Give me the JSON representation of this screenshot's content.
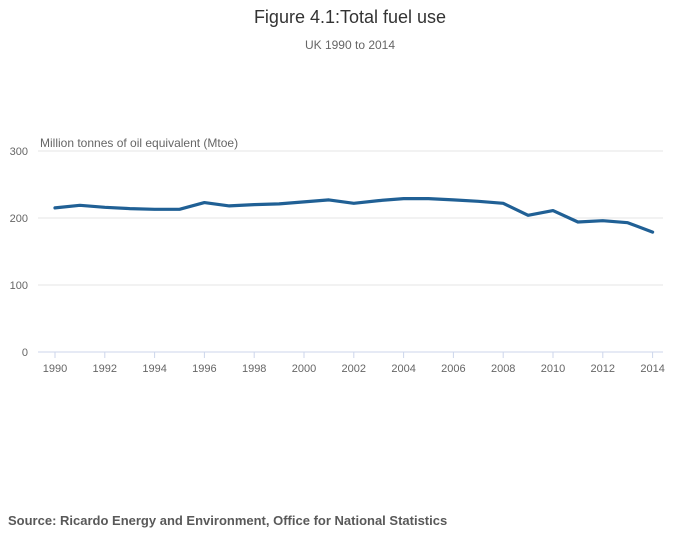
{
  "header": {
    "title": "Figure 4.1:Total fuel use",
    "subtitle": "UK 1990 to 2014"
  },
  "source": "Source: Ricardo Energy and Environment, Office for National Statistics",
  "chart_data": {
    "type": "line",
    "title": "Figure 4.1:Total fuel use",
    "subtitle": "UK 1990 to 2014",
    "ylabel": "Million tonnes of oil equivalent (Mtoe)",
    "xlabel": "",
    "x": [
      1990,
      1991,
      1992,
      1993,
      1994,
      1995,
      1996,
      1997,
      1998,
      1999,
      2000,
      2001,
      2002,
      2003,
      2004,
      2005,
      2006,
      2007,
      2008,
      2009,
      2010,
      2011,
      2012,
      2013,
      2014
    ],
    "series": [
      {
        "name": "Total fuel use (Mtoe)",
        "values": [
          215,
          219,
          216,
          214,
          213,
          213,
          223,
          218,
          220,
          221,
          224,
          227,
          222,
          226,
          229,
          229,
          227,
          225,
          222,
          204,
          211,
          194,
          196,
          193,
          179
        ]
      }
    ],
    "xlim": [
      1990,
      2014
    ],
    "ylim": [
      0,
      300
    ],
    "y_ticks": [
      0,
      100,
      200,
      300
    ],
    "x_ticks": [
      1990,
      1992,
      1994,
      1996,
      1998,
      2000,
      2002,
      2004,
      2006,
      2008,
      2010,
      2012,
      2014
    ],
    "grid": true,
    "legend": false,
    "colors": {
      "line": "#206095",
      "grid": "#e6e6e6",
      "axis": "#ccd6eb",
      "tick_label": "#666666",
      "title": "#333333",
      "subtitle": "#666666"
    }
  }
}
